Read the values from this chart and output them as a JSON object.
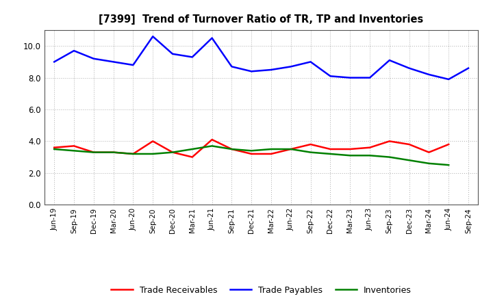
{
  "title": "[7399]  Trend of Turnover Ratio of TR, TP and Inventories",
  "x_labels": [
    "Jun-19",
    "Sep-19",
    "Dec-19",
    "Mar-20",
    "Jun-20",
    "Sep-20",
    "Dec-20",
    "Mar-21",
    "Jun-21",
    "Sep-21",
    "Dec-21",
    "Mar-22",
    "Jun-22",
    "Sep-22",
    "Dec-22",
    "Mar-23",
    "Jun-23",
    "Sep-23",
    "Dec-23",
    "Mar-24",
    "Jun-24",
    "Sep-24"
  ],
  "trade_receivables": [
    3.6,
    3.7,
    3.3,
    3.3,
    3.2,
    4.0,
    3.3,
    3.0,
    4.1,
    3.5,
    3.2,
    3.2,
    3.5,
    3.8,
    3.5,
    3.5,
    3.6,
    4.0,
    3.8,
    3.3,
    3.8,
    null
  ],
  "trade_payables": [
    9.0,
    9.7,
    9.2,
    9.0,
    8.8,
    10.6,
    9.5,
    9.3,
    10.5,
    8.7,
    8.4,
    8.5,
    8.7,
    9.0,
    8.1,
    8.0,
    8.0,
    9.1,
    8.6,
    8.2,
    7.9,
    8.6
  ],
  "inventories": [
    3.5,
    3.4,
    3.3,
    3.3,
    3.2,
    3.2,
    3.3,
    3.5,
    3.7,
    3.5,
    3.4,
    3.5,
    3.5,
    3.3,
    3.2,
    3.1,
    3.1,
    3.0,
    2.8,
    2.6,
    2.5,
    null
  ],
  "ylim": [
    0.0,
    11.0
  ],
  "yticks": [
    0.0,
    2.0,
    4.0,
    6.0,
    8.0,
    10.0
  ],
  "tr_color": "#ff0000",
  "tp_color": "#0000ff",
  "inv_color": "#008000",
  "legend_labels": [
    "Trade Receivables",
    "Trade Payables",
    "Inventories"
  ],
  "background_color": "#ffffff",
  "plot_bg_color": "#ffffff",
  "grid_color": "#aaaaaa",
  "line_width": 1.8
}
